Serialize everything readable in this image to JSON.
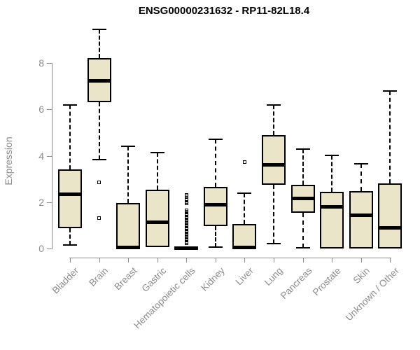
{
  "header": {
    "title": "ENSG00000231632 - RP11-82L18.4"
  },
  "chart_data": {
    "type": "boxplot",
    "title": "ENSG00000231632 - RP11-82L18.4",
    "xlabel": "",
    "ylabel": "Expression",
    "ylim": [
      0,
      9.6
    ],
    "yticks": [
      0,
      2,
      4,
      6,
      8
    ],
    "grid": false,
    "legend": "none",
    "categories": [
      "Bladder",
      "Brain",
      "Breast",
      "Gastric",
      "Hematopoietic cells",
      "Kidney",
      "Liver",
      "Lung",
      "Pancreas",
      "Prostate",
      "Skin",
      "Unknown / Other"
    ],
    "boxes": [
      {
        "label": "Bladder",
        "whisker_low": 0.15,
        "q1": 0.88,
        "median": 2.35,
        "q3": 3.42,
        "whisker_high": 6.2,
        "outliers": []
      },
      {
        "label": "Brain",
        "whisker_low": 3.85,
        "q1": 6.3,
        "median": 7.25,
        "q3": 8.22,
        "whisker_high": 9.45,
        "outliers": [
          2.87,
          1.31
        ]
      },
      {
        "label": "Breast",
        "whisker_low": 0,
        "q1": 0,
        "median": 0.05,
        "q3": 1.95,
        "whisker_high": 4.4,
        "outliers": []
      },
      {
        "label": "Gastric",
        "whisker_low": 0.05,
        "q1": 0.05,
        "median": 1.13,
        "q3": 2.55,
        "whisker_high": 4.15,
        "outliers": []
      },
      {
        "label": "Hematopoietic cells",
        "whisker_low": 0,
        "q1": 0,
        "median": 0.03,
        "q3": 0.08,
        "whisker_high": 0.08,
        "outliers": [
          0.22,
          0.3,
          0.38,
          0.46,
          0.54,
          0.62,
          0.7,
          0.78,
          0.86,
          0.94,
          1.02,
          1.1,
          1.18,
          1.26,
          1.34,
          1.42,
          1.5,
          1.58,
          1.66,
          1.95,
          2.02,
          2.1,
          2.25,
          2.32
        ]
      },
      {
        "label": "Kidney",
        "whisker_low": 0.06,
        "q1": 0.98,
        "median": 1.88,
        "q3": 2.67,
        "whisker_high": 4.7,
        "outliers": []
      },
      {
        "label": "Liver",
        "whisker_low": 0,
        "q1": 0,
        "median": 0.06,
        "q3": 1.05,
        "whisker_high": 2.4,
        "outliers": [
          3.73
        ]
      },
      {
        "label": "Lung",
        "whisker_low": 0.2,
        "q1": 2.76,
        "median": 3.6,
        "q3": 4.88,
        "whisker_high": 6.2,
        "outliers": []
      },
      {
        "label": "Pancreas",
        "whisker_low": 0.04,
        "q1": 1.54,
        "median": 2.15,
        "q3": 2.74,
        "whisker_high": 4.3,
        "outliers": []
      },
      {
        "label": "Prostate",
        "whisker_low": 0,
        "q1": 0,
        "median": 1.8,
        "q3": 2.46,
        "whisker_high": 4.03,
        "outliers": []
      },
      {
        "label": "Skin",
        "whisker_low": 0,
        "q1": 0,
        "median": 1.42,
        "q3": 2.47,
        "whisker_high": 3.65,
        "outliers": []
      },
      {
        "label": "Unknown / Other",
        "whisker_low": 0,
        "q1": 0,
        "median": 0.88,
        "q3": 2.8,
        "whisker_high": 6.8,
        "outliers": []
      }
    ],
    "colors": {
      "box_fill": "#EAE5C8",
      "box_border": "#000000",
      "median": "#000000",
      "whisker": "#000000",
      "axis": "#8B8B8B",
      "title": "#000000"
    }
  }
}
